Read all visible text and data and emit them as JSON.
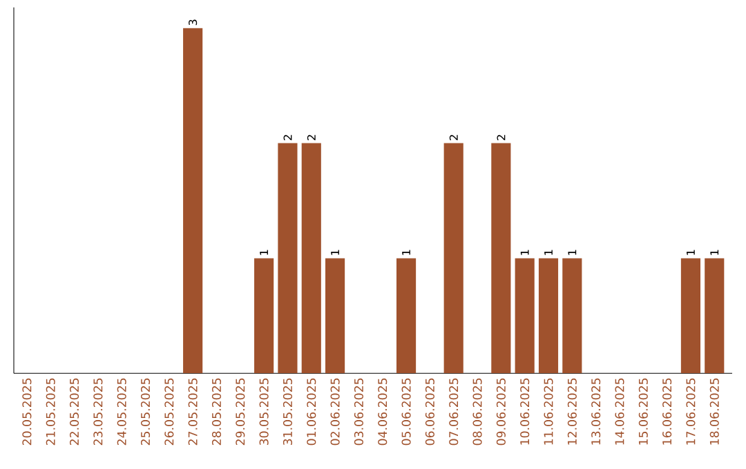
{
  "chart_data": {
    "type": "bar",
    "categories": [
      "20.05.2025",
      "21.05.2025",
      "22.05.2025",
      "23.05.2025",
      "24.05.2025",
      "25.05.2025",
      "26.05.2025",
      "27.05.2025",
      "28.05.2025",
      "29.05.2025",
      "30.05.2025",
      "31.05.2025",
      "01.06.2025",
      "02.06.2025",
      "03.06.2025",
      "04.06.2025",
      "05.06.2025",
      "06.06.2025",
      "07.06.2025",
      "08.06.2025",
      "09.06.2025",
      "10.06.2025",
      "11.06.2025",
      "12.06.2025",
      "13.06.2025",
      "14.06.2025",
      "15.06.2025",
      "16.06.2025",
      "17.06.2025",
      "18.06.2025"
    ],
    "values": [
      0,
      0,
      0,
      0,
      0,
      0,
      0,
      3,
      0,
      0,
      1,
      2,
      2,
      1,
      0,
      0,
      1,
      0,
      2,
      0,
      2,
      1,
      1,
      1,
      0,
      0,
      0,
      0,
      1,
      1
    ],
    "value_labels": [
      null,
      null,
      null,
      null,
      null,
      null,
      null,
      "3",
      null,
      null,
      "1",
      "2",
      "2",
      "1",
      null,
      null,
      "1",
      null,
      "2",
      null,
      "2",
      "1",
      "1",
      "1",
      null,
      null,
      null,
      null,
      "1",
      "1"
    ],
    "color": "#a0522d",
    "tick_labels": "x"
  }
}
